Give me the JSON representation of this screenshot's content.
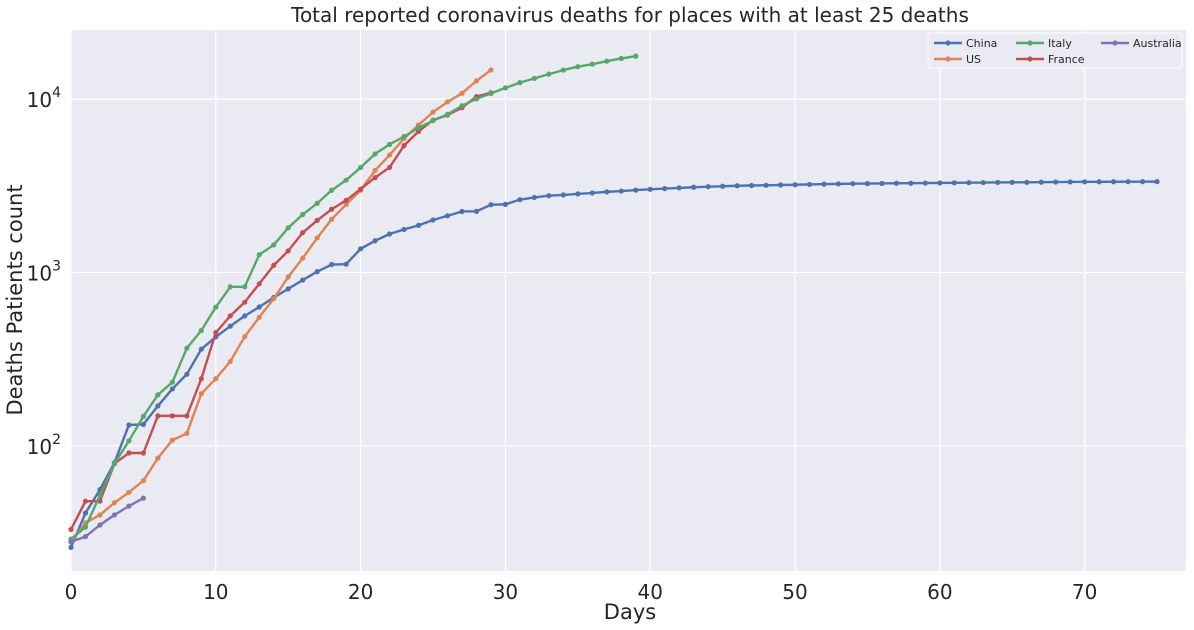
{
  "chart_data": {
    "type": "line",
    "title": "Total reported coronavirus deaths for places with at least 25 deaths",
    "xlabel": "Days",
    "ylabel": "Deaths Patients count",
    "xlim": [
      0,
      77
    ],
    "ylim": [
      19,
      25000
    ],
    "yscale": "log",
    "grid": true,
    "legend_position": "top-right",
    "xticks": [
      0,
      10,
      20,
      30,
      40,
      50,
      60,
      70
    ],
    "xtick_labels": [
      "0",
      "10",
      "20",
      "30",
      "40",
      "50",
      "60",
      "70"
    ],
    "yticks": [
      100,
      1000,
      10000
    ],
    "ytick_labels": [
      {
        "base": "10",
        "exp": "2"
      },
      {
        "base": "10",
        "exp": "3"
      },
      {
        "base": "10",
        "exp": "4"
      }
    ],
    "colors": {
      "background": "#eaeaf2",
      "grid": "#ffffff",
      "China": "#4c72b0",
      "US": "#dd8452",
      "Italy": "#55a868",
      "France": "#c44e52",
      "Australia": "#8172b3"
    },
    "series": [
      {
        "name": "China",
        "values": [
          26,
          41,
          56,
          80,
          132,
          133,
          170,
          213,
          259,
          361,
          425,
          490,
          562,
          632,
          717,
          804,
          904,
          1011,
          1111,
          1116,
          1369,
          1523,
          1666,
          1770,
          1868,
          2007,
          2122,
          2247,
          2251,
          2458,
          2469,
          2629,
          2708,
          2770,
          2800,
          2838,
          2873,
          2915,
          2946,
          2984,
          3015,
          3045,
          3073,
          3100,
          3123,
          3140,
          3162,
          3173,
          3180,
          3194,
          3204,
          3218,
          3231,
          3242,
          3250,
          3253,
          3261,
          3267,
          3270,
          3276,
          3281,
          3287,
          3293,
          3298,
          3304,
          3308,
          3309,
          3316,
          3322,
          3326,
          3330,
          3333,
          3335,
          3336,
          3339,
          3340
        ]
      },
      {
        "name": "US",
        "values": [
          28,
          36,
          40,
          47,
          54,
          63,
          85,
          108,
          118,
          200,
          244,
          307,
          427,
          552,
          706,
          942,
          1209,
          1581,
          2026,
          2467,
          2978,
          3873,
          4757,
          5926,
          7087,
          8407,
          9619,
          10783,
          12722,
          14695
        ]
      },
      {
        "name": "Italy",
        "values": [
          29,
          34,
          52,
          79,
          107,
          148,
          197,
          233,
          366,
          463,
          631,
          827,
          827,
          1266,
          1441,
          1809,
          2158,
          2503,
          2978,
          3405,
          4032,
          4825,
          5476,
          6077,
          6820,
          7503,
          8165,
          9134,
          10023,
          10779,
          11591,
          12428,
          13155,
          13915,
          14681,
          15362,
          15887,
          16523,
          17127,
          17669
        ]
      },
      {
        "name": "France",
        "values": [
          33,
          48,
          48,
          79,
          91,
          91,
          149,
          149,
          149,
          244,
          450,
          562,
          674,
          860,
          1100,
          1331,
          1696,
          1995,
          2314,
          2606,
          3024,
          3523,
          4032,
          5387,
          6507,
          7560,
          8078,
          8911,
          10328,
          10869
        ]
      },
      {
        "name": "Australia",
        "values": [
          28,
          30,
          35,
          40,
          45,
          50
        ]
      }
    ]
  }
}
